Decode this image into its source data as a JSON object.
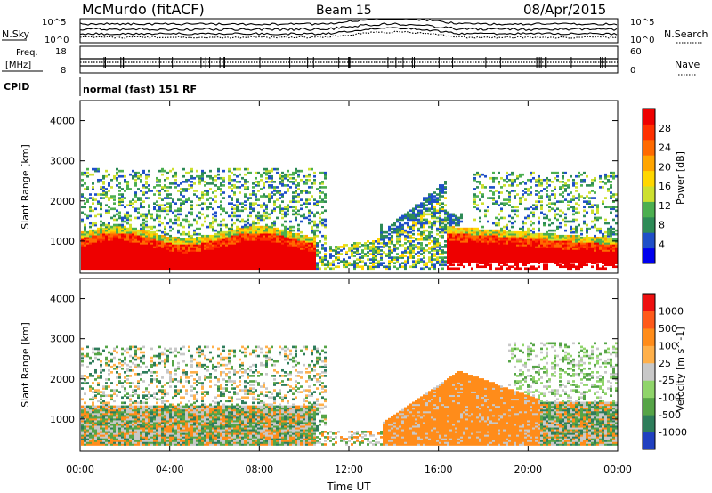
{
  "header": {
    "station": "McMurdo (fitACF)",
    "beam": "Beam 15",
    "date": "08/Apr/2015"
  },
  "strip_labels": {
    "nsky": "N.Sky",
    "nsearch": "N.Search",
    "freq_line1": "Freq.",
    "freq_line2": "[MHz]",
    "nave": "Nave",
    "cpid": "CPID",
    "nsky_ticks": [
      "10^5",
      "10^0"
    ],
    "nsearch_ticks": [
      "10^5",
      "10^0"
    ],
    "freq_ticks": [
      "18",
      "8"
    ],
    "nave_ticks": [
      "60",
      "0"
    ]
  },
  "cpid_value": "normal (fast) 151 RF",
  "colors": {
    "power": [
      "#0000ee",
      "#1f4fc8",
      "#2e8b57",
      "#4caf50",
      "#cde02f",
      "#ffd700",
      "#ffa500",
      "#ff6a00",
      "#ff3000",
      "#ee0000"
    ],
    "velocity": [
      "#2040c0",
      "#2e7d5b",
      "#56a447",
      "#8fd46a",
      "#c8c8c8",
      "#ffb04a",
      "#ff8c1a",
      "#ff5a1a",
      "#ee1010"
    ]
  },
  "chart_data": [
    {
      "type": "heatmap",
      "panel": "power",
      "xlabel": "",
      "ylabel": "Slant Range [km]",
      "xlim": [
        "00:00",
        "00:00"
      ],
      "ylim": [
        200,
        4500
      ],
      "y_ticks": [
        "1000",
        "2000",
        "3000",
        "4000"
      ],
      "colorbar_label": "Power [dB]",
      "colorbar_ticks": [
        "4",
        "8",
        "12",
        "16",
        "20",
        "24",
        "28"
      ]
    },
    {
      "type": "heatmap",
      "panel": "velocity",
      "xlabel": "Time UT",
      "ylabel": "Slant Range [km]",
      "xlim": [
        "00:00",
        "00:00"
      ],
      "ylim": [
        200,
        4500
      ],
      "x_ticks": [
        "00:00",
        "04:00",
        "08:00",
        "12:00",
        "16:00",
        "20:00",
        "00:00"
      ],
      "y_ticks": [
        "1000",
        "2000",
        "3000",
        "4000"
      ],
      "colorbar_label": "Velocity [m s^-1]",
      "colorbar_ticks": [
        "1000",
        "500",
        "100",
        "25",
        "-25",
        "-100",
        "-500",
        "-1000"
      ]
    }
  ]
}
